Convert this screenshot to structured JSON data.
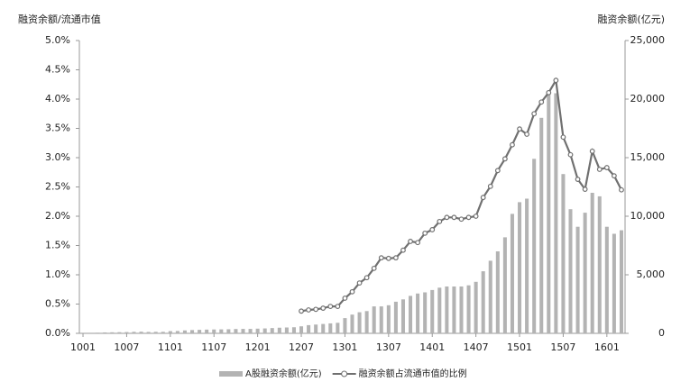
{
  "chart_data": {
    "type": "combo",
    "y_label": "融资余额/流通市值",
    "y2_label": "融资余额(亿元)",
    "categories": [
      "1001",
      null,
      null,
      null,
      null,
      null,
      "1007",
      null,
      null,
      null,
      null,
      null,
      "1101",
      null,
      null,
      null,
      null,
      null,
      "1107",
      null,
      null,
      null,
      null,
      null,
      "1201",
      null,
      null,
      null,
      null,
      null,
      "1207",
      null,
      null,
      null,
      null,
      null,
      "1301",
      null,
      null,
      null,
      null,
      null,
      "1307",
      null,
      null,
      null,
      null,
      null,
      "1401",
      null,
      null,
      null,
      null,
      null,
      "1407",
      null,
      null,
      null,
      null,
      null,
      "1501",
      null,
      null,
      null,
      null,
      null,
      "1507",
      null,
      null,
      null,
      null,
      null,
      "1601",
      null,
      null
    ],
    "series": [
      {
        "name": "A股融资余额(亿元)",
        "type": "bar",
        "axis": "y2",
        "color": "#b3b3b3",
        "values": [
          0,
          0,
          60,
          80,
          90,
          100,
          110,
          130,
          140,
          120,
          130,
          130,
          190,
          200,
          250,
          280,
          300,
          320,
          330,
          340,
          350,
          370,
          380,
          380,
          400,
          420,
          450,
          480,
          500,
          520,
          600,
          700,
          750,
          800,
          850,
          900,
          1300,
          1600,
          1800,
          1900,
          2300,
          2300,
          2400,
          2700,
          2900,
          3200,
          3400,
          3500,
          3700,
          3900,
          4000,
          4000,
          4000,
          4100,
          4400,
          5300,
          6200,
          7000,
          8200,
          10200,
          11200,
          11500,
          14900,
          18400,
          20600,
          20500,
          13600,
          10600,
          9100,
          10300,
          12000,
          11700,
          9100,
          8500,
          8800
        ]
      },
      {
        "name": "融资余额占流通市值的比例",
        "type": "line",
        "axis": "y",
        "color": "#707070",
        "values": [
          null,
          null,
          null,
          null,
          null,
          null,
          null,
          null,
          null,
          null,
          null,
          null,
          null,
          null,
          null,
          null,
          null,
          null,
          null,
          null,
          null,
          null,
          null,
          null,
          null,
          null,
          null,
          null,
          null,
          null,
          0.38,
          0.4,
          0.41,
          0.43,
          0.46,
          0.46,
          0.6,
          0.71,
          0.86,
          0.95,
          1.11,
          1.29,
          1.28,
          1.29,
          1.42,
          1.57,
          1.55,
          1.71,
          1.77,
          1.91,
          1.98,
          1.98,
          1.95,
          1.98,
          2.0,
          2.32,
          2.51,
          2.78,
          2.98,
          3.22,
          3.49,
          3.4,
          3.75,
          3.95,
          4.11,
          4.32,
          3.35,
          3.05,
          2.63,
          2.46,
          3.11,
          2.8,
          2.83,
          2.69,
          2.45
        ]
      }
    ],
    "ylim": [
      0,
      5
    ],
    "yticks": [
      {
        "value": 0,
        "label": "0.0%"
      },
      {
        "value": 0.5,
        "label": "0.5%"
      },
      {
        "value": 1,
        "label": "1.0%"
      },
      {
        "value": 1.5,
        "label": "1.5%"
      },
      {
        "value": 2,
        "label": "2.0%"
      },
      {
        "value": 2.5,
        "label": "2.5%"
      },
      {
        "value": 3,
        "label": "3.0%"
      },
      {
        "value": 3.5,
        "label": "3.5%"
      },
      {
        "value": 4,
        "label": "4.0%"
      },
      {
        "value": 4.5,
        "label": "4.5%"
      },
      {
        "value": 5,
        "label": "5.0%"
      }
    ],
    "y2lim": [
      0,
      25000
    ],
    "y2ticks": [
      0,
      {
        "value": 5000,
        "label": "5,000"
      },
      {
        "value": 10000,
        "label": "10,000"
      },
      {
        "value": 15000,
        "label": "15,000"
      },
      {
        "value": 20000,
        "label": "20,000"
      },
      {
        "value": 25000,
        "label": "25,000"
      }
    ],
    "grid": false
  }
}
